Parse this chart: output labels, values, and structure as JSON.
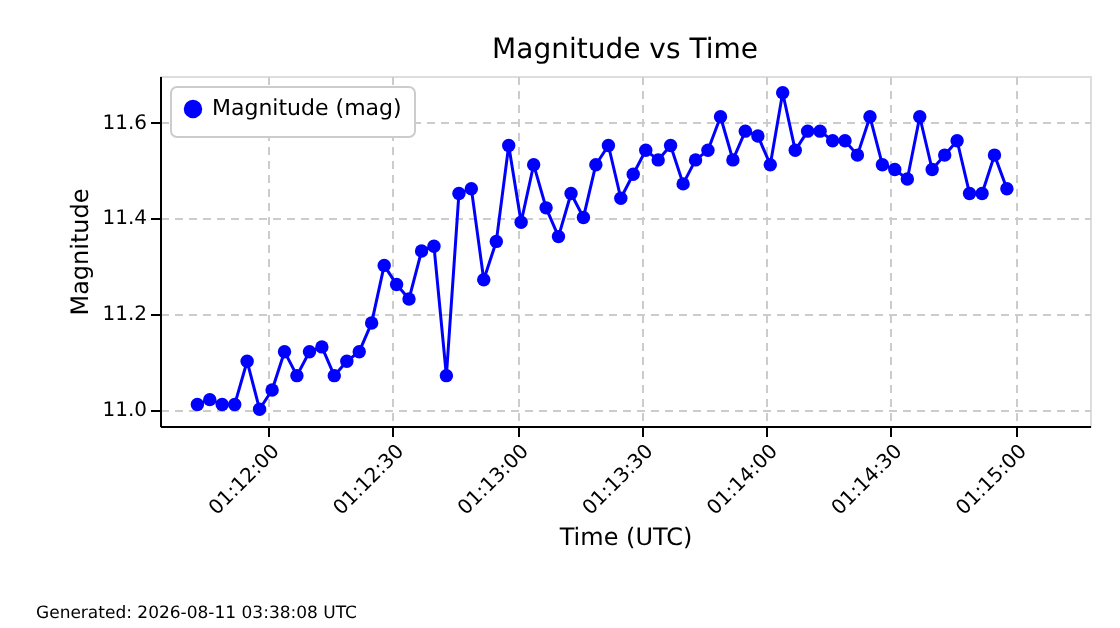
{
  "chart_data": {
    "type": "line",
    "title": "Magnitude vs Time",
    "xlabel": "Time (UTC)",
    "ylabel": "Magnitude",
    "annotations": [
      "Generated: 2026-08-11 03:38:08 UTC"
    ],
    "x": [
      1.19528,
      1.19611,
      1.19694,
      1.19778,
      1.19861,
      1.19944,
      1.20028,
      1.20111,
      1.20194,
      1.20278,
      1.20361,
      1.20444,
      1.20528,
      1.20611,
      1.20694,
      1.20778,
      1.20861,
      1.20944,
      1.21028,
      1.21111,
      1.21194,
      1.21278,
      1.21361,
      1.21444,
      1.21528,
      1.21611,
      1.21694,
      1.21778,
      1.21861,
      1.21944,
      1.22028,
      1.22111,
      1.22194,
      1.22278,
      1.22361,
      1.22444,
      1.22528,
      1.22611,
      1.22694,
      1.22778,
      1.22861,
      1.22944,
      1.23028,
      1.23111,
      1.23194,
      1.23278,
      1.23361,
      1.23444,
      1.23528,
      1.23611,
      1.23694,
      1.23778,
      1.23861,
      1.23944,
      1.24028,
      1.24111,
      1.24194,
      1.24278,
      1.24361,
      1.24444,
      1.24528,
      1.24611,
      1.24694,
      1.24778,
      1.24861,
      1.24944
    ],
    "series": [
      {
        "name": "Magnitude (mag)",
        "color": "#0000ff",
        "values": [
          11.01,
          11.02,
          11.01,
          11.01,
          11.1,
          11.0,
          11.04,
          11.12,
          11.07,
          11.12,
          11.13,
          11.07,
          11.1,
          11.12,
          11.18,
          11.3,
          11.26,
          11.23,
          11.33,
          11.34,
          11.07,
          11.45,
          11.46,
          11.27,
          11.35,
          11.55,
          11.39,
          11.51,
          11.42,
          11.36,
          11.45,
          11.4,
          11.51,
          11.55,
          11.44,
          11.49,
          11.54,
          11.52,
          11.55,
          11.47,
          11.52,
          11.54,
          11.61,
          11.52,
          11.58,
          11.57,
          11.51,
          11.66,
          11.54,
          11.58,
          11.58,
          11.56,
          11.56,
          11.53,
          11.61,
          11.51,
          11.5,
          11.48,
          11.61,
          11.5,
          11.53,
          11.56,
          11.45,
          11.45,
          11.53,
          11.46
        ]
      }
    ],
    "xlim": [
      1.19278,
      1.255
    ],
    "xticks": [
      {
        "value": 1.2,
        "label": "01:12:00"
      },
      {
        "value": 1.20833,
        "label": "01:12:30"
      },
      {
        "value": 1.21667,
        "label": "01:13:00"
      },
      {
        "value": 1.225,
        "label": "01:13:30"
      },
      {
        "value": 1.23333,
        "label": "01:14:00"
      },
      {
        "value": 1.24167,
        "label": "01:14:30"
      },
      {
        "value": 1.25,
        "label": "01:15:00"
      }
    ],
    "ylim": [
      10.965,
      11.695
    ],
    "yticks": [
      {
        "value": 11.0,
        "label": "11.0"
      },
      {
        "value": 11.2,
        "label": "11.2"
      },
      {
        "value": 11.4,
        "label": "11.4"
      },
      {
        "value": 11.6,
        "label": "11.6"
      }
    ],
    "grid": true,
    "legend": "top left",
    "marker": "circle",
    "line_style": "solid"
  }
}
